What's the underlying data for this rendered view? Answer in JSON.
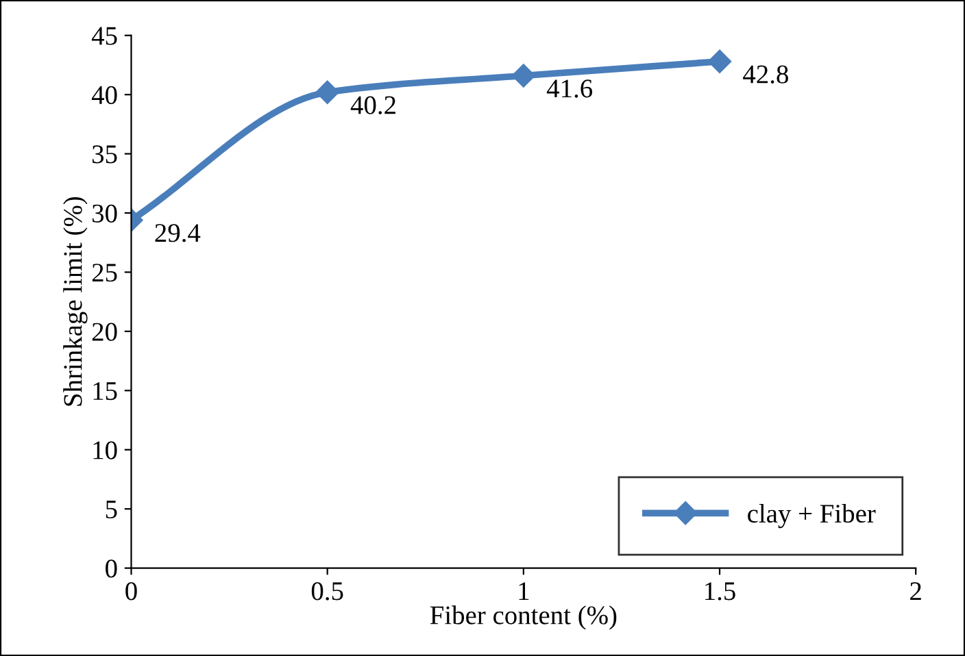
{
  "chart_data": {
    "type": "line",
    "xlabel": "Fiber content (%)",
    "ylabel": "Shrinkage limit (%)",
    "x": [
      0,
      0.5,
      1,
      1.5
    ],
    "series": [
      {
        "name": "clay + Fiber",
        "color": "#4a7ebb",
        "values": [
          29.4,
          40.2,
          41.6,
          42.8
        ]
      }
    ],
    "xlim": [
      0,
      2
    ],
    "xticks": [
      0,
      0.5,
      1,
      1.5,
      2
    ],
    "ylim": [
      0,
      45
    ],
    "yticks": [
      0,
      5,
      10,
      15,
      20,
      25,
      30,
      35,
      40,
      45
    ],
    "marker": "diamond",
    "line_style": "solid",
    "data_labels": true,
    "legend": "bottom right",
    "grid": false
  }
}
